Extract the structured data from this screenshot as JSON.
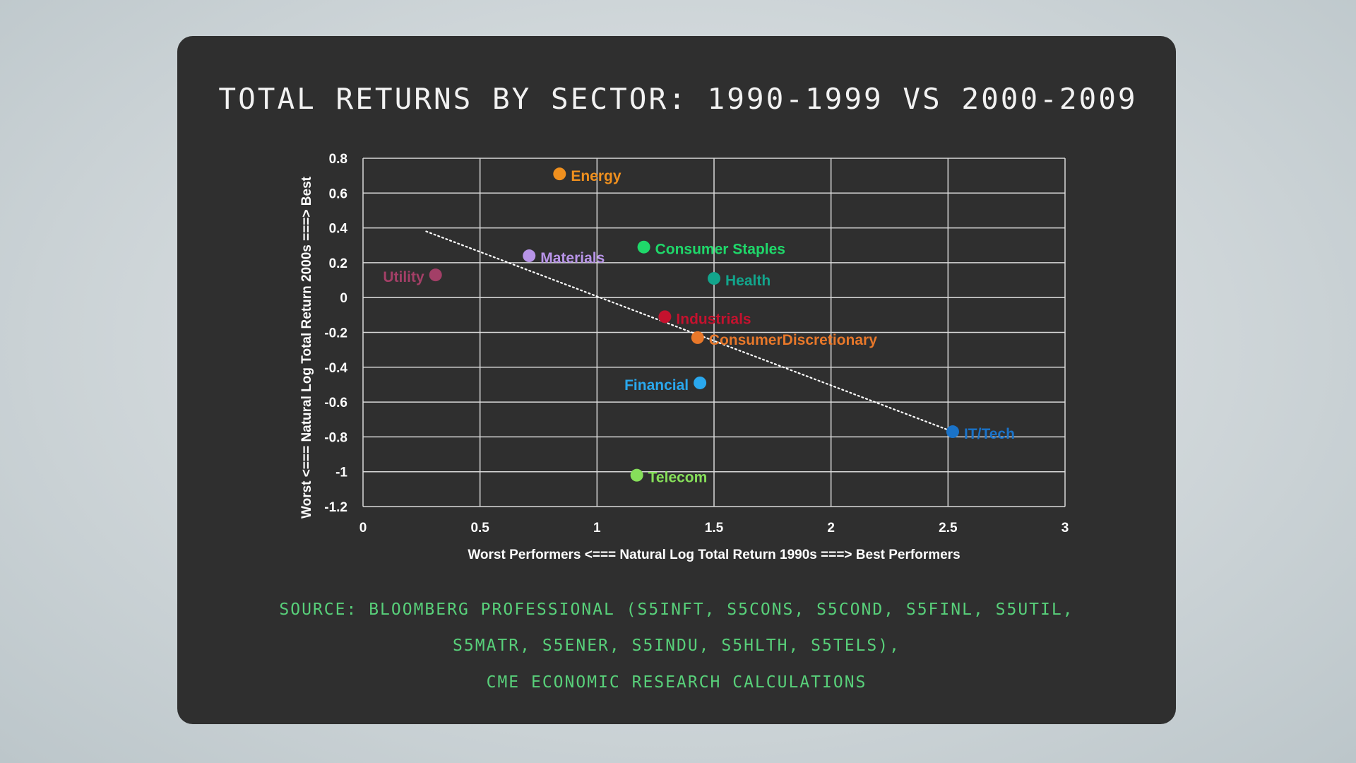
{
  "title": "TOTAL RETURNS BY SECTOR: 1990-1999 VS 2000-2009",
  "source_lines": [
    "SOURCE: BLOOMBERG PROFESSIONAL (S5INFT, S5CONS, S5COND, S5FINL, S5UTIL,",
    "S5MATR, S5ENER, S5INDU, S5HLTH, S5TELS),",
    "CME ECONOMIC RESEARCH CALCULATIONS"
  ],
  "chart_data": {
    "type": "scatter",
    "xlabel": "Worst Performers <=== Natural Log Total Return 1990s ===> Best Performers",
    "ylabel": "Worst <=== Natural Log Total Return 2000s ===> Best",
    "xlim": [
      0,
      3
    ],
    "ylim": [
      -1.2,
      0.8
    ],
    "x_ticks": [
      "0",
      "0.5",
      "1",
      "1.5",
      "2",
      "2.5",
      "3"
    ],
    "y_ticks": [
      "0.8",
      "0.6",
      "0.4",
      "0.2",
      "0",
      "-0.2",
      "-0.4",
      "-0.6",
      "-0.8",
      "-1",
      "-1.2"
    ],
    "grid": true,
    "trendline": {
      "style": "dotted",
      "color": "#ffffff",
      "x": [
        0.27,
        2.52
      ],
      "y": [
        0.38,
        -0.77
      ]
    },
    "points": [
      {
        "label": "Energy",
        "x": 0.84,
        "y": 0.71,
        "color": "#f0901e",
        "label_side": "right"
      },
      {
        "label": "Materials",
        "x": 0.71,
        "y": 0.24,
        "color": "#b894e8",
        "label_side": "right"
      },
      {
        "label": "Consumer Staples",
        "x": 1.2,
        "y": 0.29,
        "color": "#1fd86a",
        "label_side": "right"
      },
      {
        "label": "Utility",
        "x": 0.31,
        "y": 0.13,
        "color": "#a33f67",
        "label_side": "left"
      },
      {
        "label": "Health",
        "x": 1.5,
        "y": 0.11,
        "color": "#12a58c",
        "label_side": "right"
      },
      {
        "label": "Industrials",
        "x": 1.29,
        "y": -0.11,
        "color": "#c4122e",
        "label_side": "right"
      },
      {
        "label": "ConsumerDiscretionary",
        "x": 1.43,
        "y": -0.23,
        "color": "#e8782a",
        "label_side": "right"
      },
      {
        "label": "Financial",
        "x": 1.44,
        "y": -0.49,
        "color": "#2aa8ee",
        "label_side": "left"
      },
      {
        "label": "IT/Tech",
        "x": 2.52,
        "y": -0.77,
        "color": "#1a73c9",
        "label_side": "right"
      },
      {
        "label": "Telecom",
        "x": 1.17,
        "y": -1.02,
        "color": "#86df5a",
        "label_side": "right"
      }
    ]
  }
}
